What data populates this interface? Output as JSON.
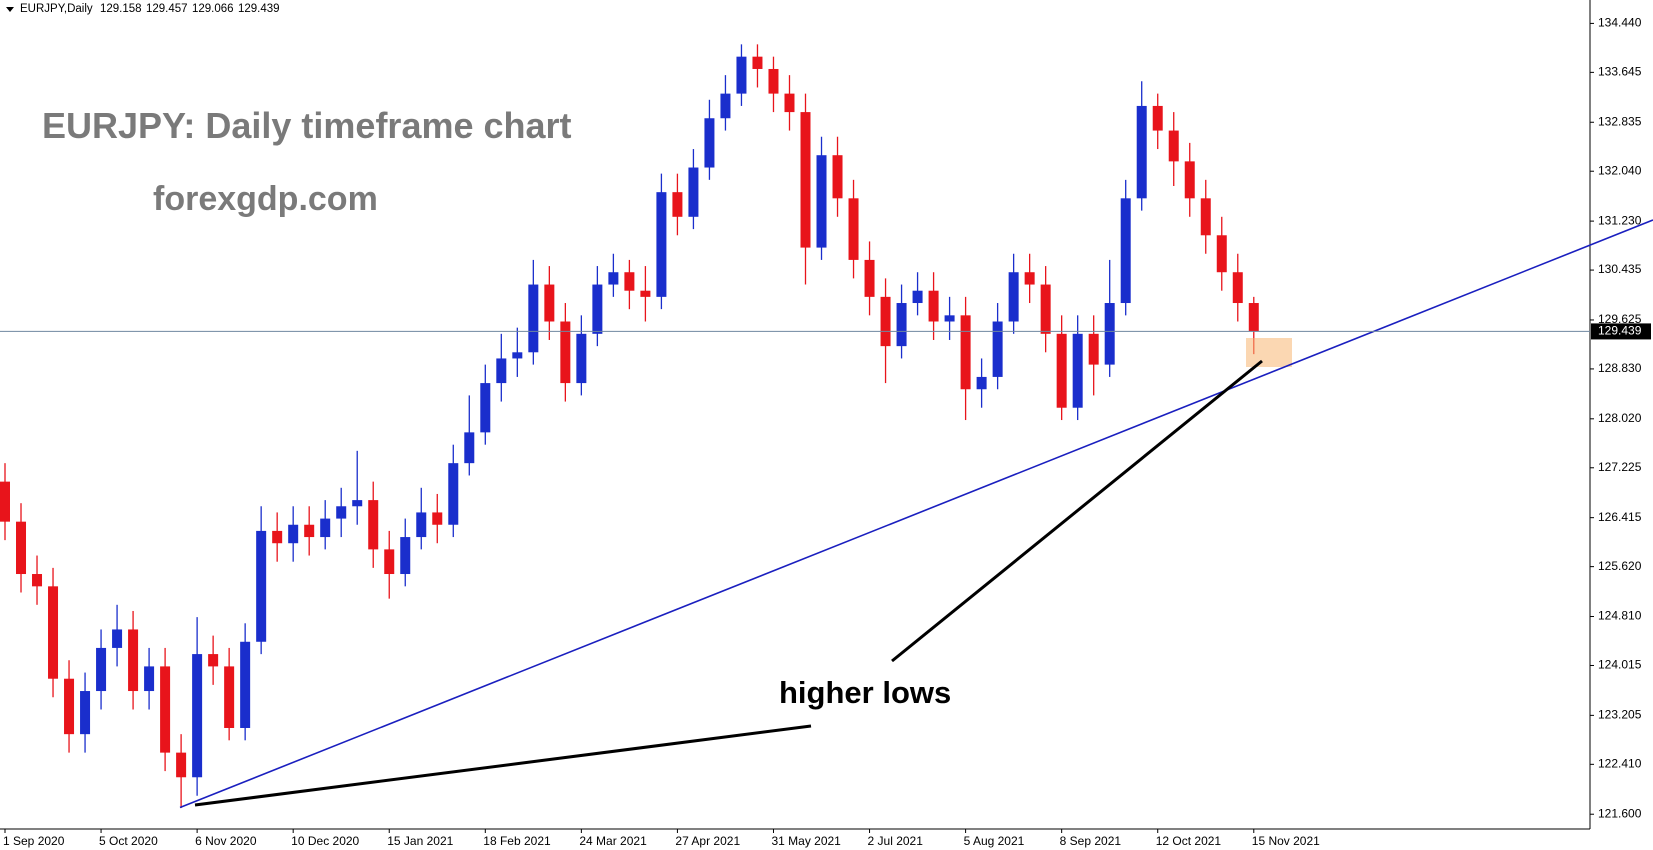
{
  "chart_data": {
    "type": "candlestick",
    "header": {
      "symbol": "EURJPY,Daily",
      "quote": [
        129.158,
        129.457,
        129.066,
        129.439
      ]
    },
    "title": "EURJPY: Daily timeframe chart",
    "subtitle": "forexgdp.com",
    "annotation": "higher lows",
    "categories": [
      "1 Sep 2020",
      null,
      null,
      null,
      null,
      null,
      "5 Oct 2020",
      null,
      null,
      null,
      null,
      null,
      "6 Nov 2020",
      null,
      null,
      null,
      null,
      null,
      "10 Dec 2020",
      null,
      null,
      null,
      null,
      null,
      "15 Jan 2021",
      null,
      null,
      null,
      null,
      null,
      "18 Feb 2021",
      null,
      null,
      null,
      null,
      null,
      "24 Mar 2021",
      null,
      null,
      null,
      null,
      null,
      "27 Apr 2021",
      null,
      null,
      null,
      null,
      null,
      "31 May 2021",
      null,
      null,
      null,
      null,
      null,
      "2 Jul 2021",
      null,
      null,
      null,
      null,
      null,
      "5 Aug 2021",
      null,
      null,
      null,
      null,
      null,
      "8 Sep 2021",
      null,
      null,
      null,
      null,
      null,
      "12 Oct 2021",
      null,
      null,
      null,
      null,
      null,
      "15 Nov 2021"
    ],
    "open": [
      127.0,
      126.35,
      125.5,
      125.3,
      123.8,
      122.9,
      123.6,
      124.3,
      124.6,
      123.6,
      124.0,
      122.6,
      122.2,
      124.2,
      124.0,
      123.0,
      124.4,
      126.2,
      126.0,
      126.3,
      126.1,
      126.4,
      126.6,
      126.7,
      125.9,
      125.5,
      126.1,
      126.5,
      126.3,
      127.3,
      127.8,
      128.6,
      129.0,
      129.1,
      130.2,
      129.6,
      128.6,
      129.4,
      130.2,
      130.4,
      130.1,
      130.0,
      131.7,
      131.3,
      132.1,
      132.9,
      133.3,
      133.9,
      133.7,
      133.3,
      133.0,
      130.8,
      132.3,
      131.6,
      130.6,
      130.0,
      129.2,
      129.9,
      130.1,
      129.6,
      129.7,
      128.5,
      128.7,
      129.6,
      130.4,
      130.2,
      129.4,
      128.2,
      129.4,
      128.9,
      129.9,
      131.6,
      133.1,
      132.7,
      132.2,
      131.6,
      131.0,
      130.4,
      129.9
    ],
    "high": [
      127.3,
      126.65,
      125.8,
      125.6,
      124.1,
      123.9,
      124.6,
      125.0,
      124.9,
      124.3,
      124.3,
      122.9,
      124.8,
      124.5,
      124.3,
      124.7,
      126.6,
      126.5,
      126.6,
      126.6,
      126.7,
      126.9,
      127.5,
      127.0,
      126.2,
      126.4,
      126.9,
      126.8,
      127.6,
      128.4,
      128.9,
      129.4,
      129.5,
      130.6,
      130.5,
      129.9,
      129.7,
      130.5,
      130.7,
      130.6,
      130.5,
      132.0,
      132.0,
      132.4,
      133.2,
      133.6,
      134.1,
      134.1,
      133.9,
      133.6,
      133.3,
      132.6,
      132.6,
      131.9,
      130.9,
      130.3,
      130.2,
      130.4,
      130.4,
      130.0,
      130.0,
      129.0,
      129.9,
      130.7,
      130.7,
      130.5,
      129.7,
      129.7,
      129.7,
      130.6,
      131.9,
      133.5,
      133.3,
      133.0,
      132.5,
      131.9,
      131.3,
      130.7,
      130.0
    ],
    "low": [
      126.05,
      125.2,
      125.0,
      123.5,
      122.6,
      122.6,
      123.3,
      124.0,
      123.3,
      123.3,
      122.3,
      121.7,
      121.9,
      123.7,
      122.8,
      122.8,
      124.2,
      125.7,
      125.7,
      125.8,
      125.9,
      126.1,
      126.3,
      125.6,
      125.1,
      125.3,
      125.9,
      126.0,
      126.1,
      127.1,
      127.6,
      128.3,
      128.7,
      128.9,
      129.3,
      128.3,
      128.4,
      129.2,
      130.0,
      129.8,
      129.6,
      129.8,
      131.0,
      131.1,
      131.9,
      132.7,
      133.1,
      133.4,
      133.0,
      132.7,
      130.2,
      130.6,
      131.3,
      130.3,
      129.7,
      128.6,
      129.0,
      129.7,
      129.3,
      129.3,
      128.0,
      128.2,
      128.5,
      129.4,
      129.9,
      129.1,
      128.0,
      128.0,
      128.4,
      128.7,
      129.7,
      131.4,
      132.4,
      131.8,
      131.3,
      130.7,
      130.1,
      129.6,
      129.07
    ],
    "close": [
      126.35,
      125.5,
      125.3,
      123.8,
      122.9,
      123.6,
      124.3,
      124.6,
      123.6,
      124.0,
      122.6,
      122.2,
      124.2,
      124.0,
      123.0,
      124.4,
      126.2,
      126.0,
      126.3,
      126.1,
      126.4,
      126.6,
      126.7,
      125.9,
      125.5,
      126.1,
      126.5,
      126.3,
      127.3,
      127.8,
      128.6,
      129.0,
      129.1,
      130.2,
      129.6,
      128.6,
      129.4,
      130.2,
      130.4,
      130.1,
      130.0,
      131.7,
      131.3,
      132.1,
      132.9,
      133.3,
      133.9,
      133.7,
      133.3,
      133.0,
      130.8,
      132.3,
      131.6,
      130.6,
      130.0,
      129.2,
      129.9,
      130.1,
      129.6,
      129.7,
      128.5,
      128.7,
      129.6,
      130.4,
      130.2,
      129.4,
      128.2,
      129.4,
      128.9,
      129.9,
      131.6,
      133.1,
      132.7,
      132.2,
      131.6,
      131.0,
      130.4,
      129.9,
      129.44
    ],
    "up_color": "#1a2ecc",
    "down_color": "#e8141b",
    "ylim": [
      121.36,
      134.82
    ],
    "yticks": [
      {
        "value": 121.6,
        "label": "121.600"
      },
      {
        "value": 122.41,
        "label": "122.410"
      },
      {
        "value": 123.205,
        "label": "123.205"
      },
      {
        "value": 124.015,
        "label": "124.015"
      },
      {
        "value": 124.81,
        "label": "124.810"
      },
      {
        "value": 125.62,
        "label": "125.620"
      },
      {
        "value": 126.415,
        "label": "126.415"
      },
      {
        "value": 127.225,
        "label": "127.225"
      },
      {
        "value": 128.02,
        "label": "128.020"
      },
      {
        "value": 128.83,
        "label": "128.830"
      },
      {
        "value": 129.625,
        "label": "129.625"
      },
      {
        "value": 130.435,
        "label": "130.435"
      },
      {
        "value": 131.23,
        "label": "131.230"
      },
      {
        "value": 132.04,
        "label": "132.040"
      },
      {
        "value": 132.835,
        "label": "132.835"
      },
      {
        "value": 133.645,
        "label": "133.645"
      },
      {
        "value": 134.44,
        "label": "134.440"
      }
    ],
    "last_price": 129.439
  }
}
